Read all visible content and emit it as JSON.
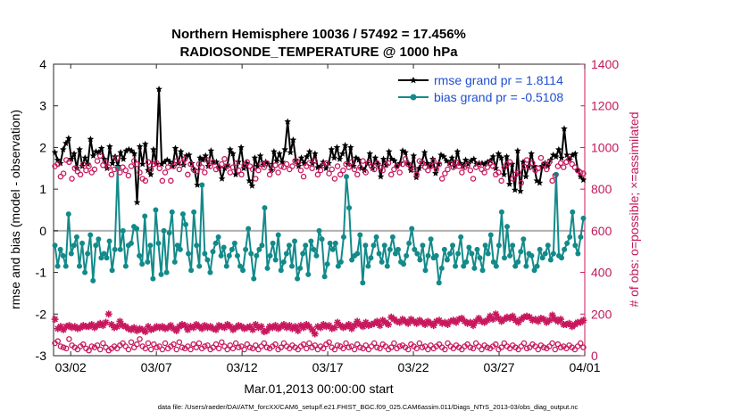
{
  "chart_data": {
    "type": "line",
    "title": [
      "Northern Hemisphere 10036 / 57492 = 17.456%",
      "RADIOSONDE_TEMPERATURE @ 1000 hPa"
    ],
    "xlabel": "Mar.01,2013 00:00:00 start",
    "ylabel": "rmse and bias (model - observation)",
    "ylabel_right": "# of obs: o=possible; ×=assimilated",
    "ylim": [
      -3,
      4
    ],
    "ylim_right": [
      0,
      1400
    ],
    "xlim": [
      "2013-03-01",
      "2013-04-01"
    ],
    "xticks": [
      "03/02",
      "03/07",
      "03/12",
      "03/17",
      "03/22",
      "03/27",
      "04/01"
    ],
    "yticks": [
      "-3",
      "-2",
      "-1",
      "0",
      "1",
      "2",
      "3",
      "4"
    ],
    "yticks_right": [
      "0",
      "200",
      "400",
      "600",
      "800",
      "1000",
      "1200",
      "1400"
    ],
    "legend_placement": "top-right",
    "footer": "data file: /Users/raeder/DAI/ATM_forcXX/CAM6_setup/f.e21.FHIST_BGC.f09_025.CAM6assim.011/Diags_NTrS_2013-03/obs_diag_output.nc",
    "colors": {
      "rmse": "#000000",
      "bias": "#138a8a",
      "counts": "#c8175d",
      "zero_line": "#b0b0b0"
    },
    "series": [
      {
        "name": "rmse grand pr = 1.8114",
        "axis": "left",
        "values": [
          1.88,
          1.7,
          1.62,
          1.95,
          2.1,
          2.22,
          1.72,
          1.85,
          1.5,
          1.95,
          1.55,
          1.75,
          1.6,
          2.2,
          1.8,
          1.9,
          1.88,
          1.98,
          1.72,
          1.5,
          2.02,
          1.62,
          1.78,
          1.55,
          1.88,
          1.72,
          1.92,
          1.95,
          1.92,
          1.85,
          0.68,
          2.02,
          1.6,
          2.08,
          1.45,
          1.35,
          1.95,
          1.6,
          3.4,
          1.6,
          1.65,
          1.7,
          1.65,
          1.55,
          1.98,
          1.62,
          1.9,
          1.58,
          1.8,
          1.82,
          1.62,
          1.45,
          1.1,
          1.75,
          1.7,
          1.8,
          1.55,
          1.92,
          1.65,
          1.65,
          1.5,
          1.25,
          1.5,
          1.58,
          1.95,
          1.85,
          1.35,
          1.65,
          2.0,
          1.5,
          1.62,
          1.2,
          1.08,
          1.75,
          1.55,
          1.8,
          1.58,
          1.65,
          1.6,
          1.45,
          1.9,
          1.68,
          1.85,
          1.65,
          1.95,
          2.62,
          1.88,
          2.18,
          1.7,
          1.55,
          1.75,
          1.62,
          1.78,
          1.9,
          1.62,
          1.85,
          1.52,
          1.55,
          1.65,
          1.5,
          1.62,
          1.95,
          1.75,
          2.0,
          1.72,
          1.85,
          2.05,
          1.6,
          2.0,
          1.55,
          1.75,
          1.7,
          1.5,
          1.45,
          1.62,
          1.85,
          1.5,
          1.75,
          1.6,
          1.3,
          1.72,
          1.58,
          1.9,
          1.72,
          1.68,
          1.55,
          1.62,
          1.92,
          1.88,
          1.62,
          1.45,
          1.8,
          1.28,
          1.5,
          1.65,
          1.88,
          1.62,
          1.55,
          1.72,
          1.38,
          1.6,
          1.82,
          1.78,
          1.68,
          1.62,
          1.75,
          1.55,
          1.9,
          1.62,
          1.55,
          1.7,
          1.6,
          1.68,
          1.72,
          1.6,
          1.62,
          1.62,
          1.6,
          1.65,
          1.68,
          1.78,
          1.5,
          1.85,
          1.75,
          1.35,
          1.78,
          1.12,
          1.6,
          0.98,
          1.92,
          0.95,
          1.65,
          1.3,
          1.55,
          1.85,
          1.55,
          1.2,
          1.15,
          1.55,
          1.62,
          1.55,
          1.7,
          1.82,
          1.78,
          1.95,
          1.75,
          2.45,
          1.82,
          1.7,
          1.82,
          1.85,
          1.45,
          1.3,
          1.22
        ]
      },
      {
        "name": "bias grand pr = -0.5108",
        "axis": "left",
        "values": [
          -0.35,
          -0.85,
          -0.45,
          -0.6,
          -0.85,
          0.4,
          -0.55,
          -0.35,
          -0.15,
          -0.85,
          -0.3,
          -1.0,
          -0.55,
          -0.1,
          -1.2,
          -0.35,
          -0.2,
          -0.65,
          -0.55,
          -0.65,
          -0.25,
          -0.95,
          -0.45,
          1.5,
          -0.45,
          0.0,
          -0.85,
          -0.35,
          -0.3,
          0.1,
          0.05,
          -0.6,
          -0.8,
          0.35,
          -0.75,
          -0.35,
          -1.15,
          0.5,
          -0.3,
          -1.05,
          0.0,
          -1.0,
          -0.05,
          0.45,
          -0.75,
          -0.35,
          -0.45,
          0.4,
          0.15,
          -0.55,
          -0.95,
          0.45,
          -0.35,
          -0.85,
          1.1,
          -0.55,
          -0.7,
          -1.0,
          -0.5,
          -0.3,
          -0.15,
          -0.6,
          -0.4,
          -0.85,
          -0.6,
          -0.45,
          -0.3,
          -0.6,
          -0.85,
          -0.95,
          -0.45,
          0.05,
          -0.55,
          -1.15,
          -0.6,
          -0.45,
          -0.35,
          0.55,
          -0.9,
          -0.6,
          -0.3,
          -0.7,
          -0.1,
          -0.95,
          -0.75,
          -0.55,
          -0.35,
          -0.85,
          -0.25,
          -1.15,
          -0.9,
          -0.55,
          -0.35,
          -1.05,
          -0.25,
          -0.45,
          -0.6,
          0.0,
          -0.2,
          -1.1,
          -0.8,
          -0.3,
          -0.45,
          -0.3,
          -0.85,
          -0.75,
          -0.15,
          1.3,
          0.55,
          -0.7,
          -0.6,
          -0.55,
          -0.1,
          -1.25,
          -0.35,
          -0.85,
          -0.65,
          -0.35,
          -0.15,
          -0.55,
          -0.75,
          -0.35,
          -0.85,
          -0.45,
          -0.15,
          -0.55,
          -0.45,
          -0.75,
          -0.8,
          -0.6,
          -0.3,
          0.05,
          -0.45,
          -0.55,
          -0.7,
          -0.35,
          -0.95,
          -0.6,
          -0.2,
          -0.65,
          -0.6,
          -1.25,
          -0.9,
          -0.45,
          -0.7,
          -0.55,
          -0.35,
          -0.85,
          -0.55,
          -0.15,
          -0.85,
          -0.75,
          -0.4,
          -0.55,
          -0.9,
          -0.45,
          -0.65,
          -0.95,
          -0.35,
          -0.55,
          -0.1,
          -0.75,
          -0.85,
          -0.35,
          0.45,
          -0.65,
          0.1,
          -0.6,
          -0.35,
          -0.85,
          -0.75,
          -0.5,
          -0.2,
          -0.85,
          -0.55,
          -0.6,
          -0.95,
          -0.85,
          -0.45,
          -0.65,
          -0.55,
          -0.35,
          -0.7,
          -0.55,
          1.35,
          -0.6,
          -0.65,
          -0.45,
          -0.3,
          -0.15,
          0.45,
          -0.35,
          -0.55,
          -0.15,
          0.3
        ]
      },
      {
        "name": "possible",
        "axis": "right",
        "marker": "o",
        "values": [
          910,
          920,
          860,
          875,
          940,
          930,
          850,
          900,
          885,
          870,
          920,
          890,
          910,
          880,
          895,
          935,
          960,
          915,
          930,
          905,
          870,
          895,
          950,
          880,
          905,
          890,
          865,
          910,
          935,
          920,
          880,
          850,
          840,
          930,
          895,
          920,
          925,
          900,
          840,
          880,
          905,
          840,
          910,
          935,
          895,
          925,
          945,
          870,
          920,
          895,
          885,
          920,
          905,
          880,
          940,
          910,
          930,
          895,
          905,
          920,
          945,
          910,
          880,
          905,
          925,
          890,
          870,
          915,
          930,
          910,
          895,
          850,
          890,
          920,
          905,
          925,
          870,
          895,
          915,
          880,
          910,
          905,
          920,
          895,
          910,
          935,
          925,
          890,
          860,
          910,
          925,
          900,
          935,
          870,
          890,
          915,
          925,
          875,
          895,
          850,
          910,
          870,
          890,
          920,
          905,
          930,
          895,
          870,
          905,
          935,
          880,
          925,
          910,
          895,
          925,
          905,
          890,
          915,
          925,
          870,
          895,
          910,
          880,
          920,
          945,
          920,
          905,
          895,
          870,
          935,
          925,
          905,
          890,
          910,
          935,
          895,
          920,
          850,
          875,
          895,
          920,
          905,
          930,
          910,
          880,
          905,
          915,
          890,
          850,
          905,
          920,
          895,
          880,
          905,
          925,
          910,
          870,
          880,
          840,
          905,
          920,
          930,
          850,
          870,
          880,
          830,
          910,
          940,
          905,
          925,
          890,
          900,
          950,
          920,
          895,
          930,
          840,
          865,
          910,
          925,
          905,
          930,
          945,
          920,
          905,
          890,
          880,
          875
        ]
      },
      {
        "name": "assimilated",
        "axis": "right",
        "marker": "*",
        "values": [
          175,
          130,
          140,
          125,
          140,
          145,
          135,
          140,
          130,
          135,
          145,
          140,
          140,
          150,
          135,
          145,
          155,
          145,
          160,
          200,
          150,
          135,
          140,
          165,
          145,
          140,
          130,
          125,
          135,
          120,
          130,
          125,
          115,
          140,
          125,
          130,
          140,
          135,
          140,
          130,
          135,
          145,
          130,
          120,
          140,
          150,
          145,
          125,
          140,
          135,
          150,
          140,
          130,
          145,
          135,
          140,
          130,
          125,
          145,
          140,
          135,
          150,
          140,
          125,
          135,
          145,
          140,
          130,
          135,
          140,
          125,
          150,
          135,
          140,
          115,
          120,
          140,
          135,
          145,
          130,
          140,
          150,
          135,
          145,
          130,
          140,
          120,
          145,
          135,
          150,
          140,
          125,
          105,
          140,
          135,
          150,
          140,
          145,
          130,
          135,
          160,
          145,
          135,
          140,
          150,
          130,
          145,
          165,
          150,
          140,
          160,
          145,
          150,
          155,
          165,
          145,
          170,
          160,
          150,
          185,
          175,
          165,
          160,
          175,
          165,
          155,
          175,
          165,
          155,
          170,
          160,
          150,
          165,
          155,
          145,
          165,
          170,
          155,
          160,
          150,
          165,
          170,
          160,
          175,
          180,
          165,
          155,
          160,
          145,
          165,
          180,
          165,
          160,
          170,
          190,
          175,
          200,
          180,
          165,
          175,
          185,
          180,
          190,
          170,
          160,
          175,
          185,
          190,
          185,
          170,
          175,
          165,
          180,
          175,
          160,
          170,
          195,
          175,
          165,
          175,
          150,
          150,
          155,
          140,
          150,
          160,
          160,
          170
        ]
      },
      {
        "name": "possible (bottom)",
        "axis": "right",
        "marker": "o",
        "values": [
          60,
          70,
          45,
          40,
          35,
          80,
          50,
          40,
          30,
          45,
          55,
          35,
          25,
          45,
          40,
          50,
          30,
          60,
          40,
          25,
          35,
          45,
          35,
          50,
          60,
          45,
          30,
          65,
          40,
          55,
          80,
          45,
          35,
          60,
          30,
          55,
          40,
          45,
          30,
          60,
          35,
          45,
          55,
          30,
          65,
          40,
          35,
          45,
          30,
          55,
          40,
          60,
          35,
          45,
          50,
          30,
          40,
          55,
          35,
          65,
          45,
          30,
          50,
          35,
          60,
          40,
          45,
          30,
          55,
          40,
          35,
          50,
          30,
          45,
          60,
          40,
          35,
          45,
          55,
          30,
          40,
          60,
          45,
          35,
          50,
          40,
          30,
          45,
          55,
          35,
          60,
          40,
          50,
          30,
          45,
          35,
          55,
          65,
          40,
          30,
          50,
          45,
          35,
          60,
          40,
          45,
          30,
          55,
          40,
          35,
          50,
          30,
          45,
          60,
          40,
          35,
          55,
          45,
          30,
          40,
          60,
          35,
          45,
          50,
          40,
          30,
          55,
          45,
          35,
          60,
          40,
          45,
          30,
          50,
          35,
          45,
          55,
          40,
          30,
          60,
          45,
          35,
          50,
          40,
          30,
          45,
          55,
          40,
          35,
          60,
          45,
          30,
          50,
          40,
          35,
          45,
          55,
          30,
          40,
          60,
          45,
          35,
          50,
          40,
          30,
          45,
          60,
          35,
          40,
          55,
          45,
          30,
          50,
          40,
          35,
          45,
          60,
          30,
          55,
          40,
          45,
          35,
          50,
          40,
          30,
          45,
          60,
          40
        ]
      }
    ]
  }
}
